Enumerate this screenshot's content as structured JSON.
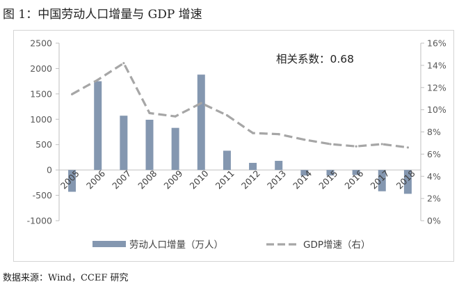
{
  "title": "图 1：中国劳动人口增量与 GDP 增速",
  "source": "数据来源：Wind，CCEF 研究",
  "chart_data": {
    "type": "bar+line",
    "categories": [
      "2005",
      "2006",
      "2007",
      "2008",
      "2009",
      "2010",
      "2011",
      "2012",
      "2013",
      "2014",
      "2015",
      "2016",
      "2017",
      "2018"
    ],
    "series": [
      {
        "name": "劳动人口增量（万人）",
        "type": "bar",
        "axis": "left",
        "values": [
          -430,
          1750,
          1070,
          990,
          830,
          1880,
          380,
          140,
          180,
          -110,
          -110,
          -100,
          -420,
          -470
        ]
      },
      {
        "name": "GDP增速（右）",
        "type": "line",
        "axis": "right",
        "dashed": true,
        "values": [
          11.4,
          12.7,
          14.2,
          9.7,
          9.4,
          10.6,
          9.5,
          7.9,
          7.8,
          7.3,
          6.9,
          6.7,
          6.9,
          6.6
        ]
      }
    ],
    "y_left": {
      "min": -1000,
      "max": 2500,
      "step": 500,
      "ticks": [
        "-1000",
        "-500",
        "0",
        "500",
        "1000",
        "1500",
        "2000",
        "2500"
      ]
    },
    "y_right": {
      "min": 0,
      "max": 16,
      "step": 2,
      "ticks": [
        "0%",
        "2%",
        "4%",
        "6%",
        "8%",
        "10%",
        "12%",
        "14%",
        "16%"
      ]
    },
    "annotation": "相关系数：0.68",
    "legend_position": "bottom",
    "colors": {
      "bar": "#8497b0",
      "line": "#a6a6a6",
      "axis": "#bfbfbf"
    }
  }
}
